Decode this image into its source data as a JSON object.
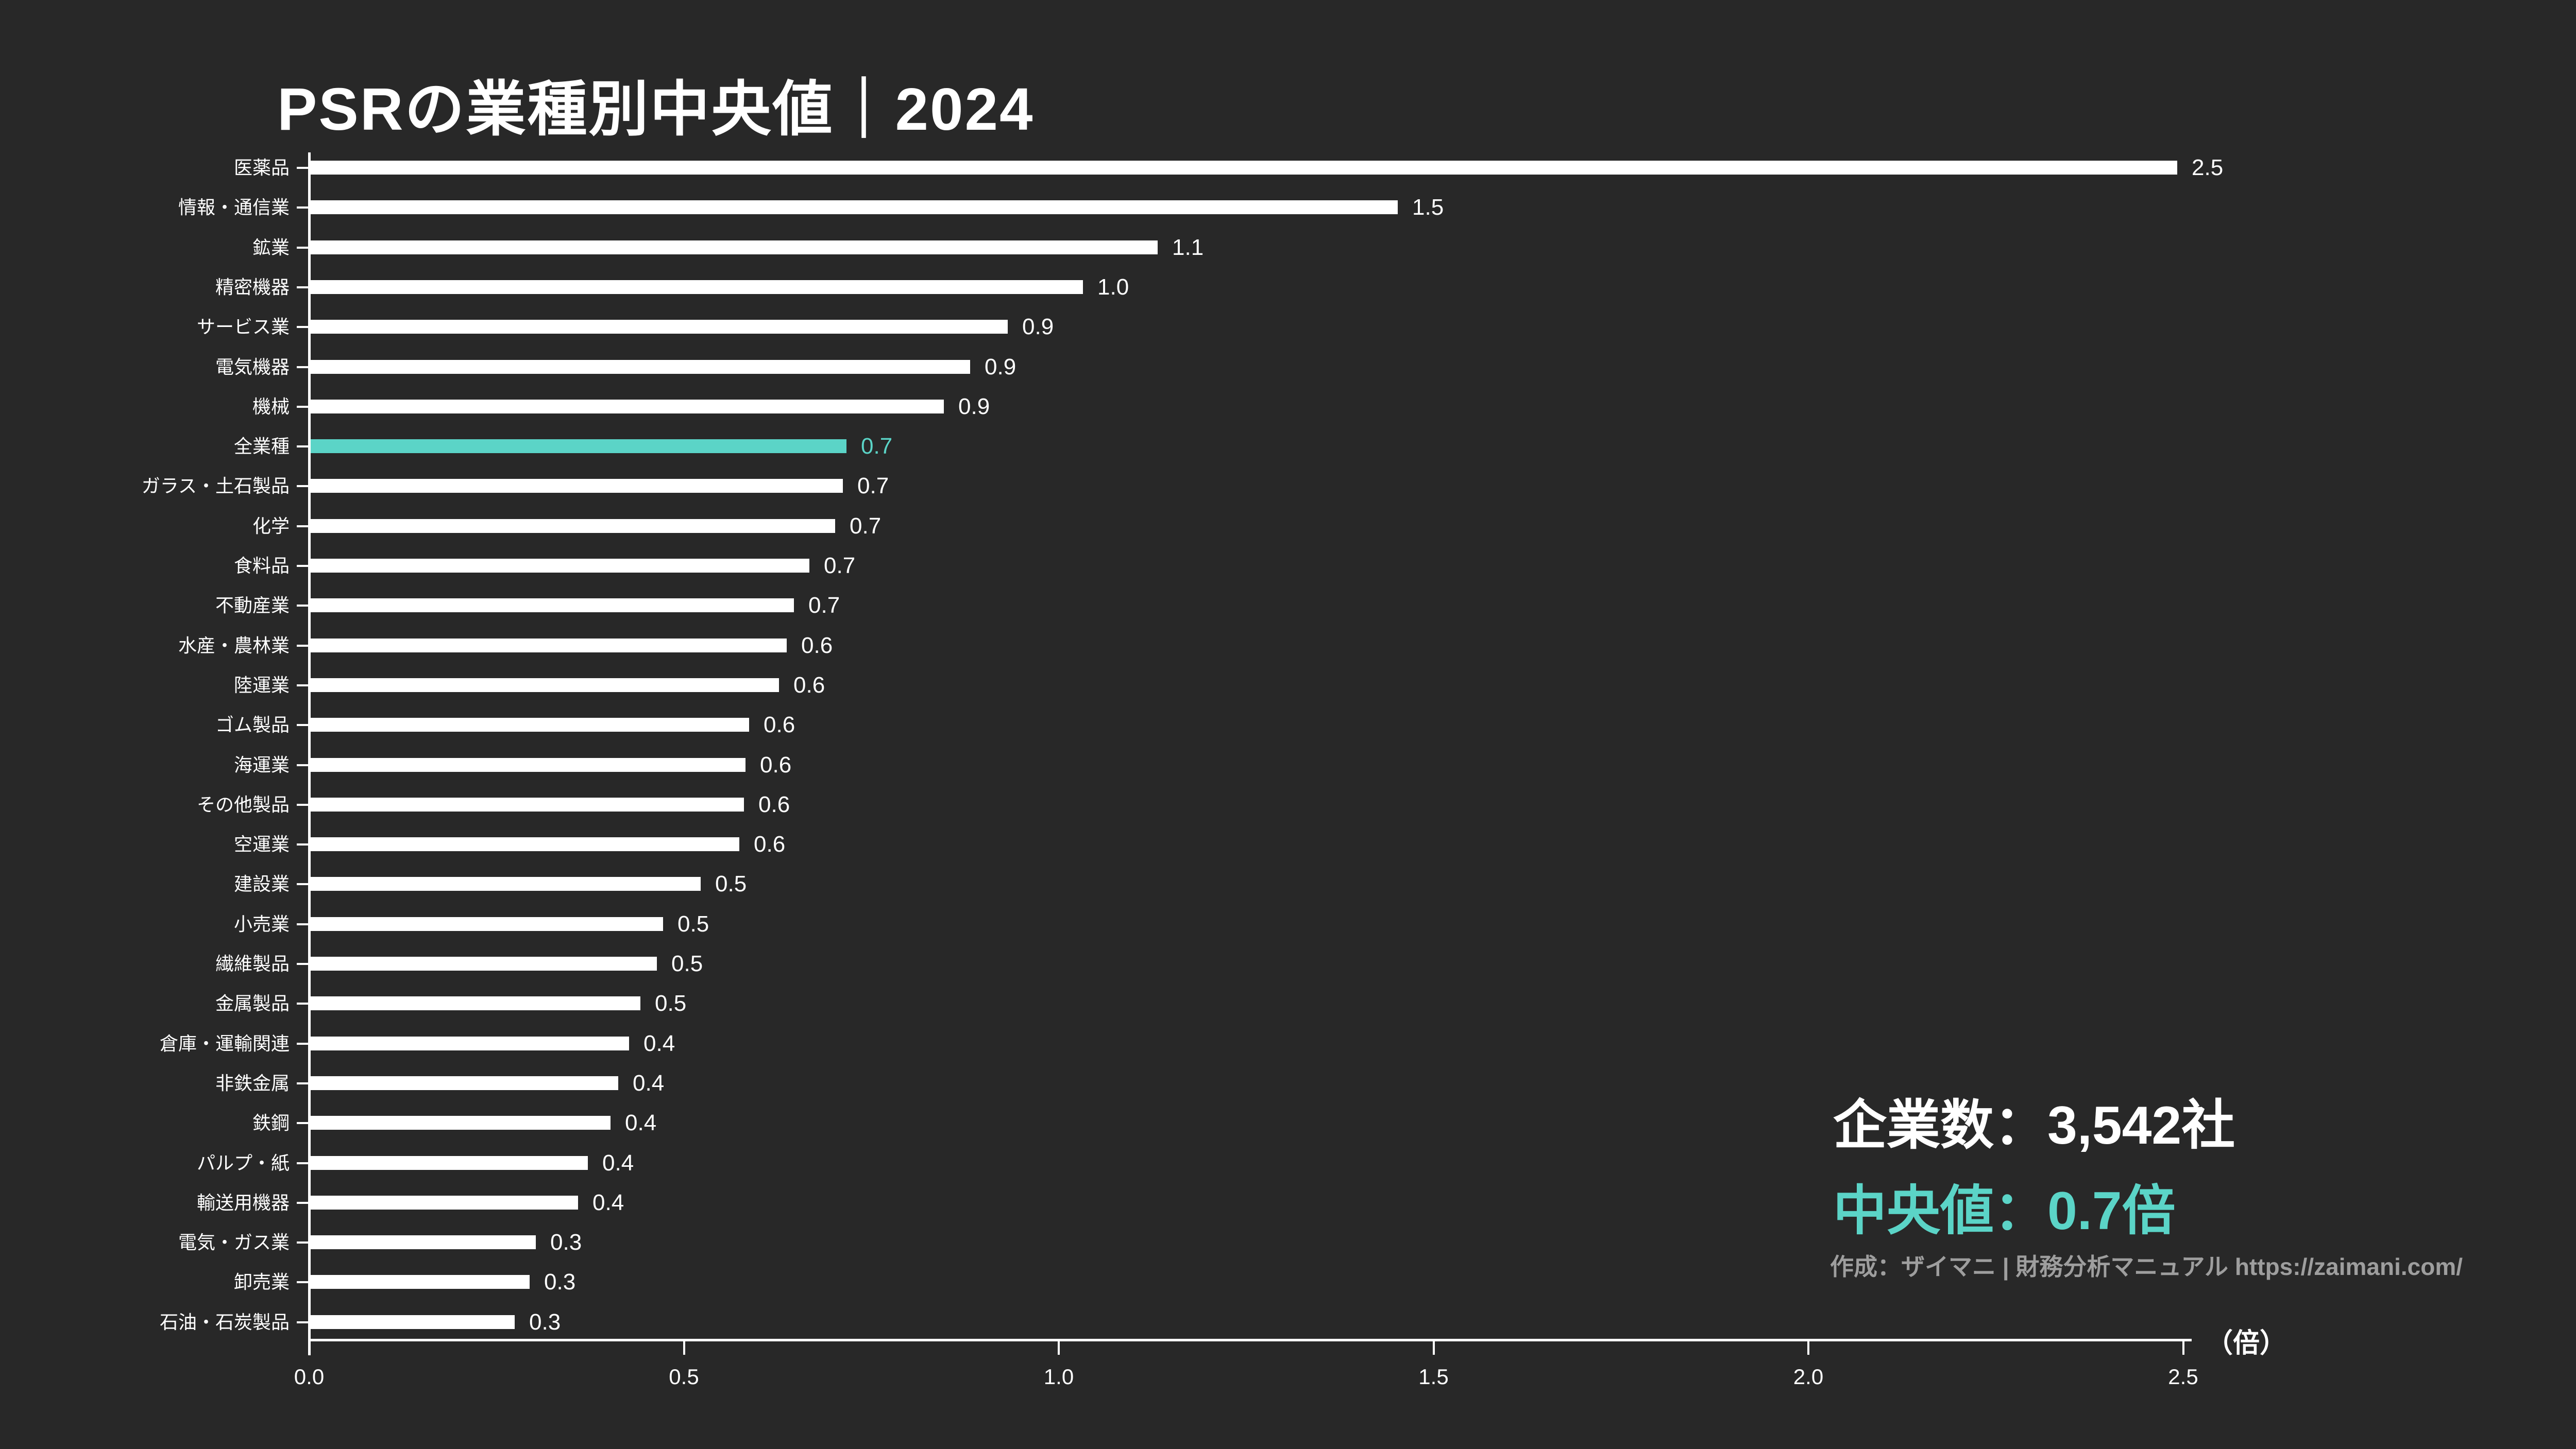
{
  "title": "PSRの業種別中央値｜2024",
  "chart_data": {
    "type": "bar",
    "orientation": "horizontal",
    "title": "PSRの業種別中央値｜2024",
    "xlabel": "（倍）",
    "ylabel": "",
    "xlim": [
      0,
      2.5
    ],
    "x_ticks": [
      "0.0",
      "0.5",
      "1.0",
      "1.5",
      "2.0",
      "2.5"
    ],
    "grid": false,
    "legend": "none",
    "unit": "倍",
    "bar_color": "#FFFFFF",
    "highlight_category": "全業種",
    "highlight_color": "#5BD4C7",
    "categories": [
      "医薬品",
      "情報・通信業",
      "鉱業",
      "精密機器",
      "サービス業",
      "電気機器",
      "機械",
      "全業種",
      "ガラス・土石製品",
      "化学",
      "食料品",
      "不動産業",
      "水産・農林業",
      "陸運業",
      "ゴム製品",
      "海運業",
      "その他製品",
      "空運業",
      "建設業",
      "小売業",
      "繊維製品",
      "金属製品",
      "倉庫・運輸関連",
      "非鉄金属",
      "鉄鋼",
      "パルプ・紙",
      "輸送用機器",
      "電気・ガス業",
      "卸売業",
      "石油・石炭製品"
    ],
    "values": [
      2.5,
      1.5,
      1.1,
      1.0,
      0.9,
      0.9,
      0.9,
      0.7,
      0.7,
      0.7,
      0.7,
      0.7,
      0.6,
      0.6,
      0.6,
      0.6,
      0.6,
      0.6,
      0.5,
      0.5,
      0.5,
      0.5,
      0.4,
      0.4,
      0.4,
      0.4,
      0.4,
      0.3,
      0.3,
      0.3
    ],
    "labels": [
      "2.5",
      "1.5",
      "1.1",
      "1.0",
      "0.9",
      "0.9",
      "0.9",
      "0.7",
      "0.7",
      "0.7",
      "0.7",
      "0.7",
      "0.6",
      "0.6",
      "0.6",
      "0.6",
      "0.6",
      "0.6",
      "0.5",
      "0.5",
      "0.5",
      "0.5",
      "0.4",
      "0.4",
      "0.4",
      "0.4",
      "0.4",
      "0.3",
      "0.3",
      "0.3"
    ],
    "bar_lengths_est": [
      2.49,
      1.45,
      1.13,
      1.03,
      0.93,
      0.88,
      0.845,
      0.715,
      0.71,
      0.7,
      0.665,
      0.645,
      0.635,
      0.625,
      0.585,
      0.58,
      0.578,
      0.572,
      0.52,
      0.47,
      0.462,
      0.44,
      0.425,
      0.41,
      0.4,
      0.37,
      0.357,
      0.3,
      0.292,
      0.272
    ]
  },
  "annotations": {
    "companies": "企業数：3,542社",
    "median": "中央値：0.7倍",
    "credit": "作成：ザイマニ | 財務分析マニュアル https://zaimani.com/"
  },
  "colors": {
    "background": "#282828",
    "bar": "#FFFFFF",
    "highlight": "#5BD4C7",
    "text": "#FFFFFF",
    "credit_text": "#9E9E9E"
  }
}
